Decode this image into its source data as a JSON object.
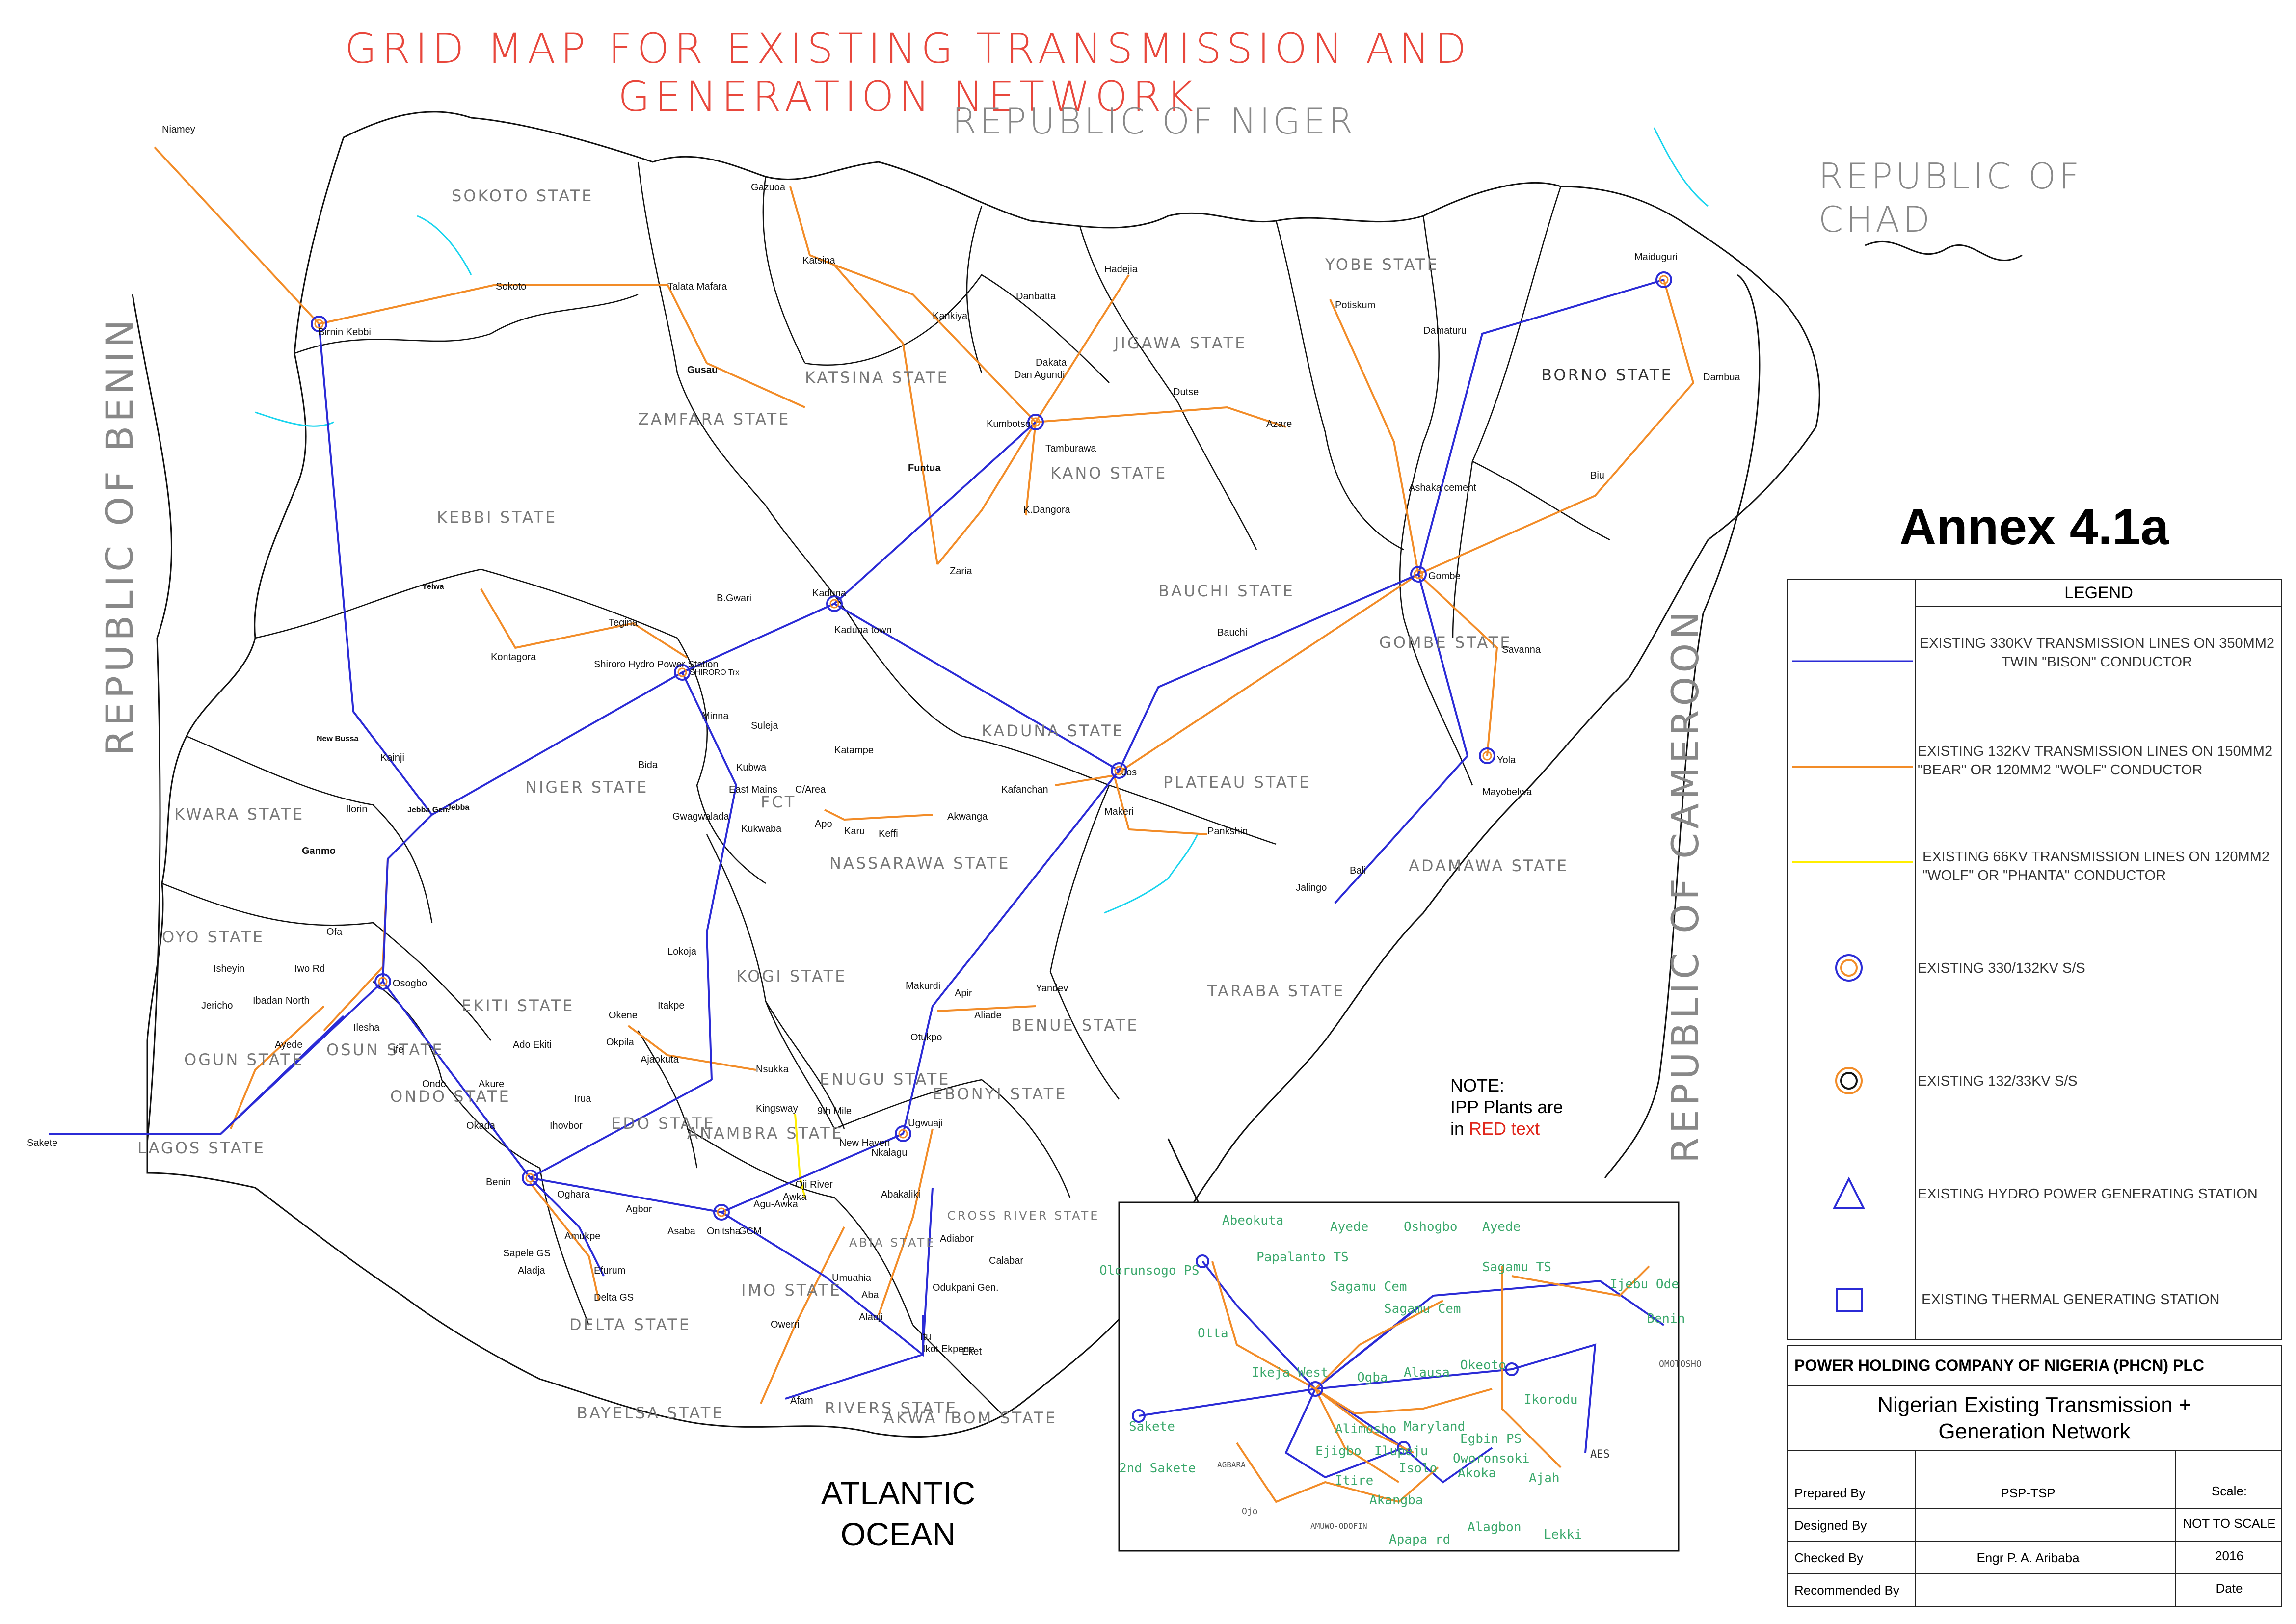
{
  "title": "GRID MAP FOR EXISTING TRANSMISSION AND GENERATION NETWORK",
  "countries": {
    "niger": "REPUBLIC OF NIGER",
    "chad_line1": "REPUBLIC OF",
    "chad_line2": "CHAD",
    "benin": "REPUBLIC OF BENIN",
    "cameroon": "REPUBLIC OF CAMEROON"
  },
  "ocean": {
    "line1": "ATLANTIC",
    "line2": "OCEAN"
  },
  "annex": "Annex 4.1a",
  "note": {
    "line1": "NOTE:",
    "line2": "IPP Plants are",
    "line3_pre": "in ",
    "line3_red": "RED text"
  },
  "states": [
    "SOKOTO STATE",
    "KATSINA STATE",
    "JIGAWA STATE",
    "YOBE STATE",
    "BORNO STATE",
    "ZAMFARA STATE",
    "KEBBI STATE",
    "KANO STATE",
    "BAUCHI STATE",
    "GOMBE STATE",
    "NIGER STATE",
    "KADUNA STATE",
    "PLATEAU STATE",
    "ADAMAWA STATE",
    "KWARA STATE",
    "FCT",
    "NASSARAWA STATE",
    "TARABA STATE",
    "OYO STATE",
    "KOGI STATE",
    "BENUE STATE",
    "OGUN STATE",
    "OSUN STATE",
    "EKITI STATE",
    "ONDO STATE",
    "LAGOS STATE",
    "EDO STATE",
    "ANAMBRA STATE",
    "ENUGU STATE",
    "EBONYI STATE",
    "DELTA STATE",
    "IMO STATE",
    "ABIA STATE",
    "CROSS RIVER STATE",
    "BAYELSA STATE",
    "RIVERS STATE",
    "AKWA IBOM STATE"
  ],
  "places": [
    "Niamey",
    "Birnin Kebbi",
    "Sokoto",
    "Talata Mafara",
    "Gusau",
    "Gazuoa",
    "Katsina",
    "Kankiya",
    "Danbatta",
    "Hadejia",
    "Dakata",
    "Dan Agundi",
    "Kumbotso",
    "Tamburawa",
    "Dutse",
    "Azare",
    "Potiskum",
    "Damaturu",
    "Maiduguri",
    "Dambua",
    "Biu",
    "Funtua",
    "K.Dangora",
    "Zaria",
    "Kaduna",
    "Kaduna town",
    "Ashaka cement",
    "Gombe",
    "Savanna",
    "Yola",
    "Mayobelwa",
    "Jalingo",
    "Bali",
    "Bauchi",
    "Jos",
    "Makeri",
    "Pankshin",
    "Kafanchan",
    "Akwanga",
    "Keffi",
    "Karu",
    "Apo",
    "Kukwaba",
    "Gwagwalada",
    "East Mains",
    "C/Area",
    "Kubwa",
    "Suleja",
    "Katampe",
    "Minna",
    "SHIRORO Trx",
    "Shiroro Hydro Power Station",
    "Tegina",
    "B.Gwari",
    "Yelwa",
    "Kontagora",
    "Bida",
    "New Bussa",
    "Kainji",
    "Jebba",
    "Jebba Gen.",
    "Ilorin",
    "Ganmo",
    "Ofa",
    "Osogbo",
    "Isheyin",
    "Iwo Rd",
    "Ibadan North",
    "Jericho",
    "Ayede",
    "Ilesha",
    "Ife",
    "Ondo",
    "Akure",
    "Ado Ekiti",
    "Okene",
    "Okpila",
    "Itakpe",
    "Ajaokuta",
    "Lokoja",
    "Makurdi",
    "Apir",
    "Aliade",
    "Yandev",
    "Otukpo",
    "Nsukka",
    "9th Mile",
    "Kingsway",
    "New Haven",
    "Nkalagu",
    "Abakaliki",
    "Ugwuaji",
    "Oji River",
    "Awka",
    "Agu-Awka",
    "Onitsha",
    "GCM",
    "Asaba",
    "Agbor",
    "Benin",
    "Oghara",
    "Irua",
    "Ihovbor",
    "Okada",
    "Amukpe",
    "Efurum",
    "Delta GS",
    "Aladja",
    "Sapele GS",
    "Owerri",
    "Umuahia",
    "Aba",
    "Alaoji",
    "Ikot Ekpene",
    "Itu",
    "Eket",
    "Adiabor",
    "Odukpani Gen.",
    "Calabar",
    "Afam",
    "Sakete"
  ],
  "inset_labels": [
    "Abeokuta",
    "Ayede",
    "Oshogbo",
    "Ayede",
    "Olorunsogo PS",
    "Papalanto TS",
    "Sagamu TS",
    "Ijebu Ode",
    "Sagamu Cem",
    "Sagamu Cem",
    "Benin",
    "OMOTOSHO",
    "Otta",
    "Ikeja West",
    "Ogba",
    "Alausa",
    "Okeoto",
    "Ikorodu",
    "Sakete",
    "Alimosho",
    "Maryland",
    "Egbin PS",
    "Ejigbo",
    "Ilupeju",
    "Oworonsoki",
    "AES",
    "2nd Sakete",
    "AGBARA",
    "Isolo",
    "Akoka",
    "Itire",
    "Ojo",
    "Akangba",
    "Alagbon",
    "Lekki",
    "AMUWO-ODOFIN",
    "Apapa rd",
    "Ajah"
  ],
  "legend": {
    "header": "LEGEND",
    "items": [
      {
        "text": "EXISTING 330KV TRANSMISSION LINES ON 350MM2 TWIN \"BISON\" CONDUCTOR",
        "symbol": "line",
        "color": "#2b2bd6"
      },
      {
        "text": "EXISTING 132KV TRANSMISSION LINES ON 150MM2 \"BEAR\" OR 120MM2 \"WOLF\" CONDUCTOR",
        "symbol": "line",
        "color": "#f28c28"
      },
      {
        "text": "EXISTING 66KV TRANSMISSION LINES ON 120MM2 \"WOLF\" OR \"PHANTA\" CONDUCTOR",
        "symbol": "line",
        "color": "#ffee00"
      },
      {
        "text": "EXISTING 330/132KV S/S",
        "symbol": "circle-blue-orange"
      },
      {
        "text": "EXISTING 132/33KV S/S",
        "symbol": "circle-orange-black"
      },
      {
        "text": "EXISTING HYDRO POWER GENERATING STATION",
        "symbol": "triangle-blue"
      },
      {
        "text": "EXISTING THERMAL GENERATING STATION",
        "symbol": "square-blue"
      }
    ]
  },
  "title_block": {
    "company": "POWER HOLDING COMPANY OF NIGERIA (PHCN) PLC",
    "drawing_name_line1": "Nigerian Existing Transmission +",
    "drawing_name_line2": "Generation Network",
    "rows": [
      {
        "label": "Prepared By",
        "value": "PSP-TSP",
        "col3": "Scale:"
      },
      {
        "label": "Designed By",
        "value": "",
        "col3": "NOT TO SCALE"
      },
      {
        "label": "Checked By",
        "value": "Engr P. A. Aribaba",
        "col3": "2016"
      },
      {
        "label": "Recommended By",
        "value": "",
        "col3": "Date"
      }
    ]
  },
  "colors": {
    "line_330kv": "#2b2bd6",
    "line_132kv": "#f28c28",
    "line_66kv": "#ffee00",
    "river": "#19d4ee",
    "title": "#e8473c",
    "state_label": "#777777",
    "inset_label": "#3aa86b"
  }
}
